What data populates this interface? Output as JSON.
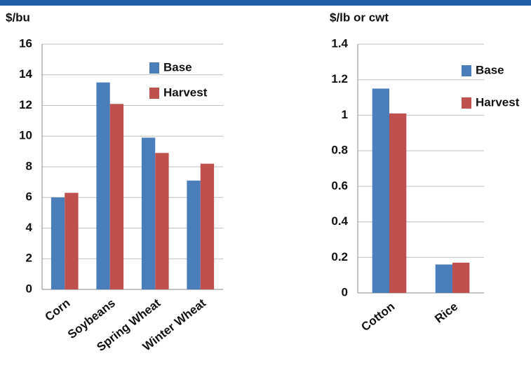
{
  "chart_data": [
    {
      "type": "bar",
      "y_label": "$/bu",
      "categories": [
        "Corn",
        "Soybeans",
        "Spring Wheat",
        "Winter Wheat"
      ],
      "series": [
        {
          "name": "Base",
          "color": "#4a7ebb",
          "values": [
            6.0,
            13.5,
            9.9,
            7.1
          ]
        },
        {
          "name": "Harvest",
          "color": "#c0504d",
          "values": [
            6.3,
            12.1,
            8.9,
            8.2
          ]
        }
      ],
      "ylim": [
        0,
        16
      ],
      "yticks": [
        0,
        2,
        4,
        6,
        8,
        10,
        12,
        14,
        16
      ],
      "grid": true
    },
    {
      "type": "bar",
      "y_label": "$/lb or cwt",
      "categories": [
        "Cotton",
        "Rice"
      ],
      "series": [
        {
          "name": "Base",
          "color": "#4a7ebb",
          "values": [
            1.15,
            0.16
          ]
        },
        {
          "name": "Harvest",
          "color": "#c0504d",
          "values": [
            1.01,
            0.17
          ]
        }
      ],
      "ylim": [
        0,
        1.4
      ],
      "yticks": [
        0,
        0.2,
        0.4,
        0.6,
        0.8,
        1,
        1.2,
        1.4
      ],
      "grid": true
    }
  ]
}
